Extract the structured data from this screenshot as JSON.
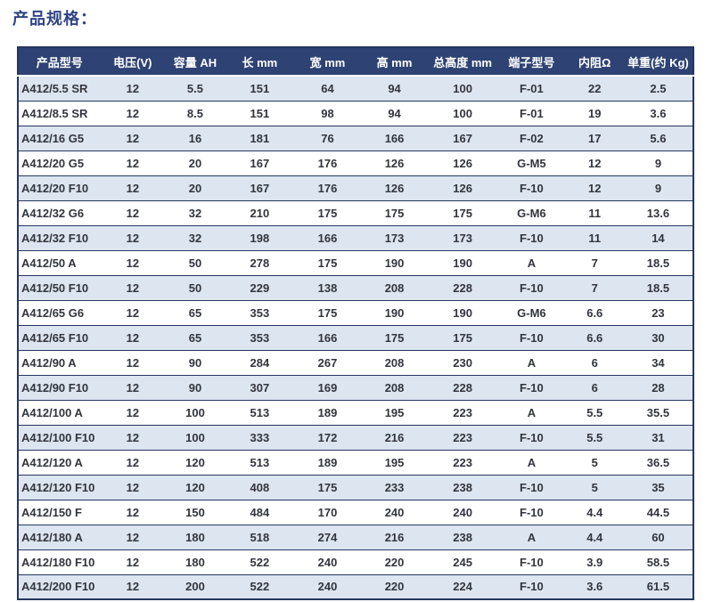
{
  "page_title": "产品规格：",
  "colors": {
    "header_bg": "#2e4273",
    "header_text": "#ffffff",
    "row_alt_bg": "#dce5f0",
    "row_bg": "#ffffff",
    "border": "#26365e",
    "title_text": "#2f4385",
    "cell_text": "#33353d"
  },
  "table": {
    "columns": [
      "产品型号",
      "电压(V)",
      "容量 AH",
      "长 mm",
      "宽 mm",
      "高 mm",
      "总高度 mm",
      "端子型号",
      "内阻Ω",
      "单重(约 Kg)"
    ],
    "rows": [
      [
        "A412/5.5 SR",
        "12",
        "5.5",
        "151",
        "64",
        "94",
        "100",
        "F-01",
        "22",
        "2.5"
      ],
      [
        "A412/8.5 SR",
        "12",
        "8.5",
        "151",
        "98",
        "94",
        "100",
        "F-01",
        "19",
        "3.6"
      ],
      [
        "A412/16 G5",
        "12",
        "16",
        "181",
        "76",
        "166",
        "167",
        "F-02",
        "17",
        "5.6"
      ],
      [
        "A412/20 G5",
        "12",
        "20",
        "167",
        "176",
        "126",
        "126",
        "G-M5",
        "12",
        "9"
      ],
      [
        "A412/20 F10",
        "12",
        "20",
        "167",
        "176",
        "126",
        "126",
        "F-10",
        "12",
        "9"
      ],
      [
        "A412/32 G6",
        "12",
        "32",
        "210",
        "175",
        "175",
        "175",
        "G-M6",
        "11",
        "13.6"
      ],
      [
        "A412/32 F10",
        "12",
        "32",
        "198",
        "166",
        "173",
        "173",
        "F-10",
        "11",
        "14"
      ],
      [
        "A412/50 A",
        "12",
        "50",
        "278",
        "175",
        "190",
        "190",
        "A",
        "7",
        "18.5"
      ],
      [
        "A412/50 F10",
        "12",
        "50",
        "229",
        "138",
        "208",
        "228",
        "F-10",
        "7",
        "18.5"
      ],
      [
        "A412/65 G6",
        "12",
        "65",
        "353",
        "175",
        "190",
        "190",
        "G-M6",
        "6.6",
        "23"
      ],
      [
        "A412/65 F10",
        "12",
        "65",
        "353",
        "166",
        "175",
        "175",
        "F-10",
        "6.6",
        "30"
      ],
      [
        "A412/90 A",
        "12",
        "90",
        "284",
        "267",
        "208",
        "230",
        "A",
        "6",
        "34"
      ],
      [
        "A412/90 F10",
        "12",
        "90",
        "307",
        "169",
        "208",
        "228",
        "F-10",
        "6",
        "28"
      ],
      [
        "A412/100 A",
        "12",
        "100",
        "513",
        "189",
        "195",
        "223",
        "A",
        "5.5",
        "35.5"
      ],
      [
        "A412/100 F10",
        "12",
        "100",
        "333",
        "172",
        "216",
        "223",
        "F-10",
        "5.5",
        "31"
      ],
      [
        "A412/120 A",
        "12",
        "120",
        "513",
        "189",
        "195",
        "223",
        "A",
        "5",
        "36.5"
      ],
      [
        "A412/120 F10",
        "12",
        "120",
        "408",
        "175",
        "233",
        "238",
        "F-10",
        "5",
        "35"
      ],
      [
        "A412/150 F",
        "12",
        "150",
        "484",
        "170",
        "240",
        "240",
        "F-10",
        "4.4",
        "44.5"
      ],
      [
        "A412/180 A",
        "12",
        "180",
        "518",
        "274",
        "216",
        "238",
        "A",
        "4.4",
        "60"
      ],
      [
        "A412/180 F10",
        "12",
        "180",
        "522",
        "240",
        "220",
        "245",
        "F-10",
        "3.9",
        "58.5"
      ],
      [
        "A412/200 F10",
        "12",
        "200",
        "522",
        "240",
        "220",
        "224",
        "F-10",
        "3.6",
        "61.5"
      ]
    ]
  }
}
